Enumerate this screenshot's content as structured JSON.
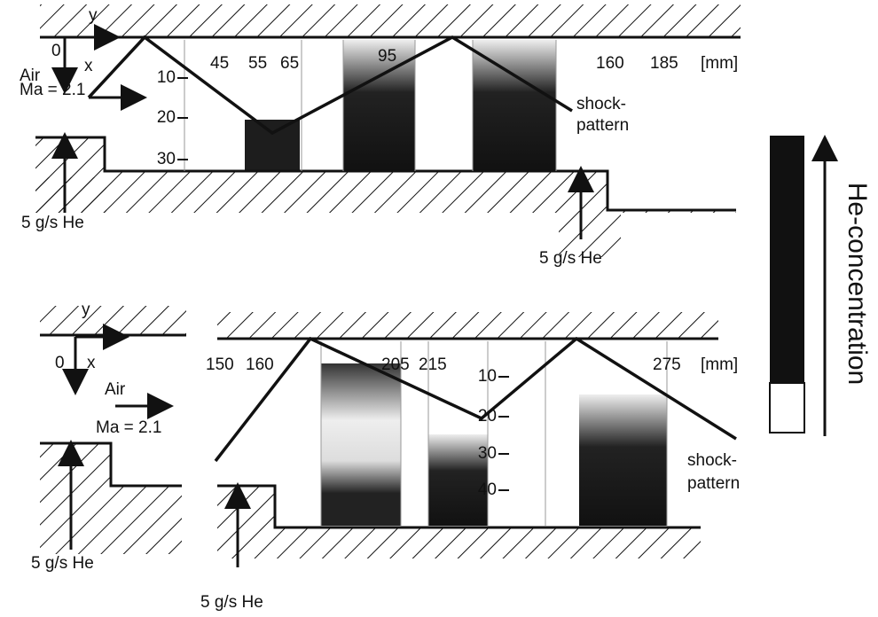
{
  "top_panel": {
    "axis_y": "y",
    "origin": "0",
    "axis_x": "x",
    "flow_label": "Air",
    "mach": "Ma = 2.1",
    "x_positions": [
      "45",
      "55",
      "65",
      "95",
      "160",
      "185"
    ],
    "unit": "[mm]",
    "depth_ticks": [
      "10",
      "20",
      "30"
    ],
    "shock_label": [
      "shock-",
      "pattern"
    ],
    "injection_labels": [
      "5 g/s He",
      "5 g/s He"
    ]
  },
  "bottom_panel": {
    "axis_y": "y",
    "origin": "0",
    "axis_x": "x",
    "flow_label": "Air",
    "mach": "Ma = 2.1",
    "x_positions": [
      "150",
      "160",
      "205",
      "215",
      "275"
    ],
    "unit": "[mm]",
    "depth_ticks": [
      "10",
      "20",
      "30",
      "40"
    ],
    "shock_label": [
      "shock-",
      "pattern"
    ],
    "injection_labels": [
      "5 g/s He",
      "5 g/s He"
    ]
  },
  "legend": {
    "label": "He-concentration"
  }
}
